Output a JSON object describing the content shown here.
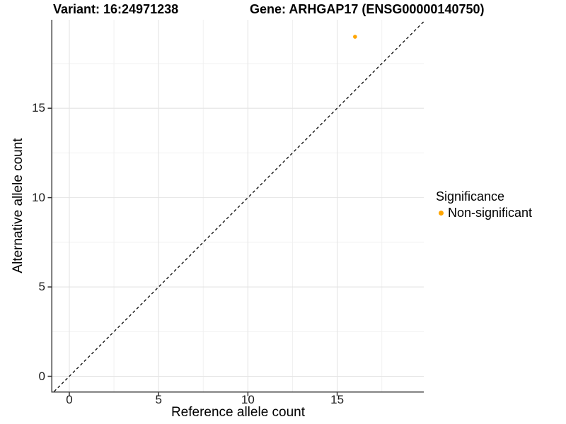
{
  "titles": {
    "variant": "Variant: 16:24971238",
    "gene": "Gene: ARHGAP17 (ENSG00000140750)"
  },
  "axes": {
    "x_label": "Reference allele count",
    "y_label": "Alternative allele count"
  },
  "legend": {
    "title": "Significance",
    "items": [
      {
        "label": "Non-significant",
        "color": "#FFA500"
      }
    ]
  },
  "chart_data": {
    "type": "scatter",
    "title_left": "Variant: 16:24971238",
    "title_right": "Gene: ARHGAP17 (ENSG00000140750)",
    "xlabel": "Reference allele count",
    "ylabel": "Alternative allele count",
    "xlim": [
      -0.95,
      19.85
    ],
    "ylim": [
      -0.85,
      19.95
    ],
    "x_major_ticks": [
      0,
      5,
      10,
      15
    ],
    "y_major_ticks": [
      0,
      5,
      10,
      15
    ],
    "x_minor_gridlines": [
      2.5,
      7.5,
      12.5,
      17.5
    ],
    "y_minor_gridlines": [
      2.5,
      7.5,
      12.5,
      17.5
    ],
    "grid": true,
    "legend_position": "right",
    "legend_title": "Significance",
    "identity_line": {
      "type": "abline",
      "slope": 1,
      "intercept": 0,
      "style": "dashed",
      "color": "#141414"
    },
    "series": [
      {
        "name": "Non-significant",
        "color": "#FFA500",
        "points": [
          [
            16,
            19
          ]
        ],
        "point_radius": 2.8
      }
    ],
    "style": {
      "axis_line_color": "#404040",
      "tick_color": "#333333",
      "major_grid_color": "#e4e4e4",
      "minor_grid_color": "#f1f1f1",
      "background": "#ffffff"
    }
  }
}
